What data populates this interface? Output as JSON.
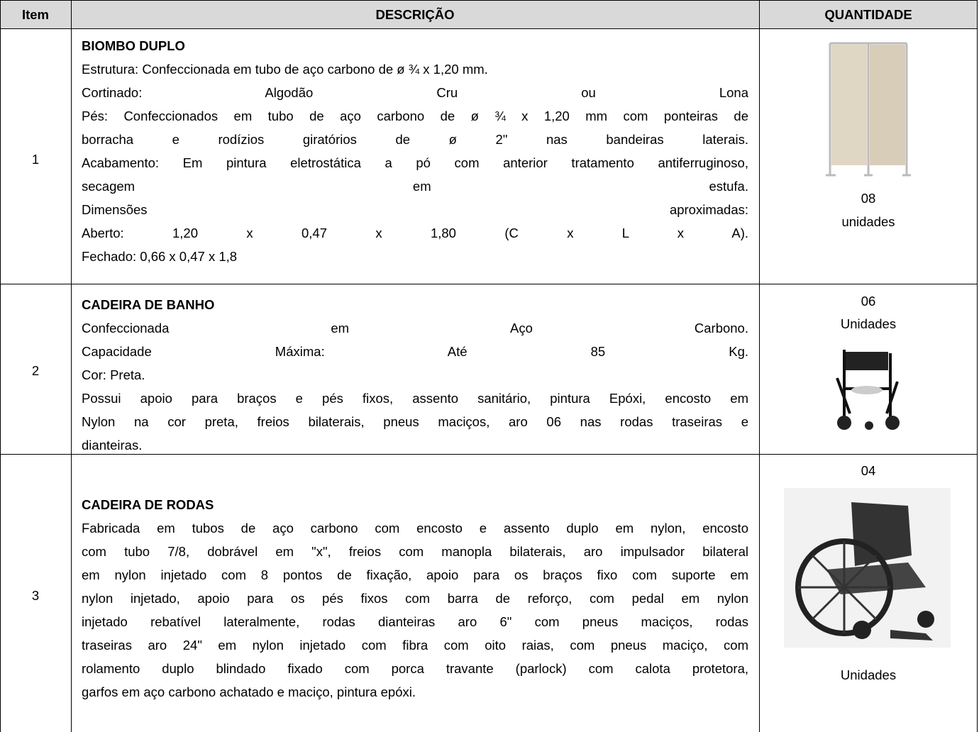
{
  "table": {
    "header": [
      "Item",
      "DESCRIÇÃO",
      "QUANTIDADE"
    ],
    "rows": [
      {
        "item": "1",
        "title": "BIOMBO DUPLO",
        "lines": [
          "Estrutura: Confeccionada em tubo de aço carbono de ø ¾ x 1,20 mm.",
          "Cortinado: Algodão Cru ou Lona",
          "Pés: Confeccionados em tubo de aço carbono de ø ¾ x 1,20 mm com ponteiras de",
          "borracha e rodízios giratórios de ø 2\" nas bandeiras laterais.",
          "Acabamento: Em pintura eletrostática a pó com anterior tratamento antiferruginoso,",
          "secagem em estufa.",
          "Dimensões aproximadas:",
          "Aberto: 1,20 x 0,47 x 1,80 (C x L x A).",
          "Fechado: 0,66 x 0,47 x 1,8"
        ],
        "quantity": [
          "08",
          "unidades"
        ]
      },
      {
        "item": "2",
        "title": "CADEIRA DE BANHO",
        "lines": [
          "Confeccionada em Aço Carbono.",
          "Capacidade Máxima: Até 85 Kg.",
          "Cor: Preta.",
          "Possui apoio para braços e pés fixos, assento sanitário, pintura Epóxi, encosto em",
          "Nylon na cor preta, freios bilaterais, pneus maciços, aro 06 nas rodas traseiras e",
          "dianteiras."
        ],
        "quantity": [
          "06",
          "Unidades"
        ]
      },
      {
        "item": "3",
        "title": "CADEIRA DE RODAS",
        "lines": [
          "Fabricada em tubos de aço carbono com encosto e assento duplo em nylon, encosto",
          "com tubo 7/8, dobrável em \"x\", freios com manopla bilaterais, aro impulsador bilateral",
          "em nylon injetado com 8 pontos de fixação, apoio para os braços fixo com suporte em",
          "nylon injetado, apoio para os pés fixos com barra de reforço, com pedal em nylon",
          "injetado rebatível lateralmente, rodas dianteiras aro 6\" com pneus maciços, rodas",
          "traseiras aro 24\" em nylon injetado com fibra com oito raias, com pneus maciço, com",
          "rolamento duplo blindado fixado com porca travante (parlock) com calota protetora,",
          "garfos em aço carbono achatado e maciço, pintura epóxi."
        ],
        "quantity": [
          "04",
          "Unidades"
        ]
      }
    ]
  }
}
